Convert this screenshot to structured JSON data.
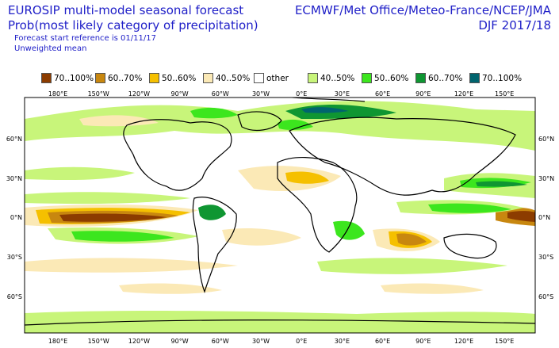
{
  "header": {
    "title_line1": "EUROSIP multi-model seasonal forecast",
    "title_line2": "Prob(most likely category of precipitation)",
    "reference": "Forecast start reference is 01/11/17",
    "mean_type": "Unweighted mean",
    "centres": "ECMWF/Met Office/Meteo-France/NCEP/JMA",
    "season": "DJF 2017/18"
  },
  "legend": [
    {
      "label": "70..100%",
      "color": "#8c3c00"
    },
    {
      "label": "60..70%",
      "color": "#c8870f"
    },
    {
      "label": "50..60%",
      "color": "#f5c000"
    },
    {
      "label": "40..50%",
      "color": "#fbe9b6"
    },
    {
      "label": "other",
      "color": "#ffffff"
    },
    {
      "label": "40..50%",
      "color": "#c8f57a"
    },
    {
      "label": "50..60%",
      "color": "#3ce61e"
    },
    {
      "label": "60..70%",
      "color": "#0f9632"
    },
    {
      "label": "70..100%",
      "color": "#00646e"
    }
  ],
  "map": {
    "lon_labels": [
      "180°E",
      "150°W",
      "120°W",
      "90°W",
      "60°W",
      "30°W",
      "0°E",
      "30°E",
      "60°E",
      "90°E",
      "120°E",
      "150°E"
    ],
    "lat_labels": [
      "60°N",
      "30°N",
      "0°N",
      "30°S",
      "60°S"
    ]
  }
}
